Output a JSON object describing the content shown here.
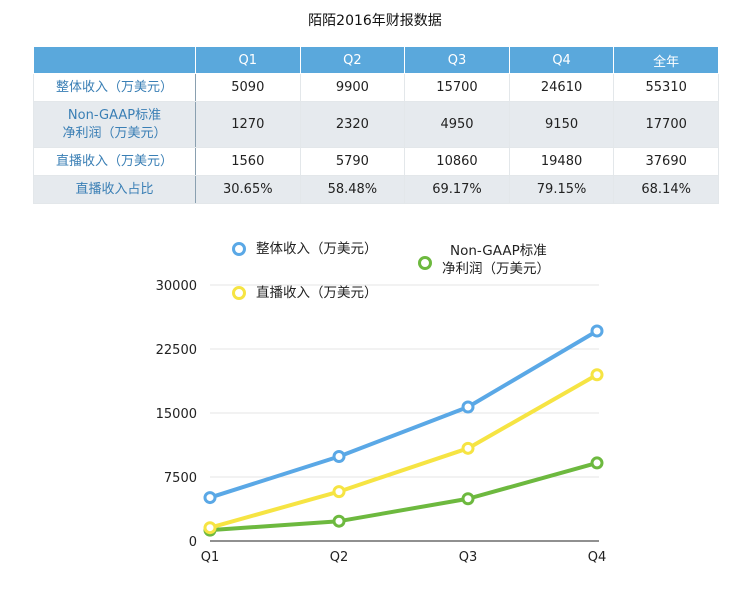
{
  "title": "陌陌2016年财报数据",
  "table": {
    "headers": [
      "Q1",
      "Q2",
      "Q3",
      "Q4",
      "全年"
    ],
    "rows": [
      {
        "label": "整体收入（万美元）",
        "label_lines": [
          "整体收入（万美元）"
        ],
        "values": [
          "5090",
          "9900",
          "15700",
          "24610",
          "55310"
        ]
      },
      {
        "label": "Non-GAAP标准净利润（万美元）",
        "label_lines": [
          "Non-GAAP标准",
          "净利润（万美元）"
        ],
        "values": [
          "1270",
          "2320",
          "4950",
          "9150",
          "17700"
        ]
      },
      {
        "label": "直播收入（万美元）",
        "label_lines": [
          "直播收入（万美元）"
        ],
        "values": [
          "1560",
          "5790",
          "10860",
          "19480",
          "37690"
        ]
      },
      {
        "label": "直播收入占比",
        "label_lines": [
          "直播收入占比"
        ],
        "values": [
          "30.65%",
          "58.48%",
          "69.17%",
          "79.15%",
          "68.14%"
        ]
      }
    ]
  },
  "chart_data": {
    "type": "line",
    "title": "",
    "categories": [
      "Q1",
      "Q2",
      "Q3",
      "Q4"
    ],
    "ylim": [
      0,
      30000
    ],
    "yticks": [
      0,
      7500,
      15000,
      22500,
      30000
    ],
    "grid": true,
    "series": [
      {
        "name": "整体收入（万美元）",
        "name_lines": [
          "整体收入（万美元）"
        ],
        "color": "#5aa8e6",
        "values": [
          5090,
          9900,
          15700,
          24610
        ]
      },
      {
        "name": "Non-GAAP标准净利润（万美元）",
        "name_lines": [
          "Non-GAAP标准",
          "净利润（万美元）"
        ],
        "color": "#6db93f",
        "values": [
          1270,
          2320,
          4950,
          9150
        ]
      },
      {
        "name": "直播收入（万美元）",
        "name_lines": [
          "直播收入（万美元）"
        ],
        "color": "#f6e443",
        "values": [
          1560,
          5790,
          10860,
          19480
        ]
      }
    ]
  }
}
